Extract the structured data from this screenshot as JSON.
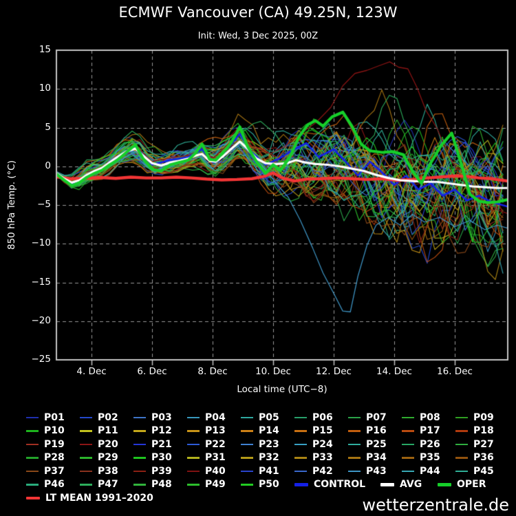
{
  "header": {
    "title": "ECMWF Vancouver (CA) 49.25N, 123W",
    "subtitle": "Init: Wed, 3 Dec 2025, 00Z"
  },
  "footer": {
    "watermark": "wetterzentrale.de"
  },
  "chart_data": {
    "type": "line",
    "title": "ECMWF Vancouver (CA) 49.25N, 123W",
    "subtitle": "Init: Wed, 3 Dec 2025, 00Z",
    "xlabel": "Local time (UTC−8)",
    "ylabel": "850 hPa Temp. (°C)",
    "x_domain": [
      2.84,
      17.75
    ],
    "x_unit": "day of December 2025",
    "ylim": [
      -25,
      15
    ],
    "grid": "dashed",
    "grid_color": "#9a9a9a",
    "frame_color": "#c4c4c4",
    "background": "#000000",
    "yticks": {
      "values": [
        15,
        10,
        5,
        0,
        -5,
        -10,
        -15,
        -20,
        -25
      ],
      "labels": [
        "15",
        "10",
        "5",
        "0",
        "−5",
        "−10",
        "−15",
        "−20",
        "−25"
      ]
    },
    "xticks": {
      "values": [
        4,
        6,
        8,
        10,
        12,
        14,
        16
      ],
      "labels": [
        "4. Dec",
        "6. Dec",
        "8. Dec",
        "10. Dec",
        "12. Dec",
        "14. Dec",
        "16. Dec"
      ]
    },
    "series": {
      "avg": {
        "name": "AVG",
        "color": "#ffffff",
        "width": 3.2,
        "points": [
          [
            2.84,
            -0.9
          ],
          [
            3.1,
            -1.6
          ],
          [
            3.35,
            -2.1
          ],
          [
            3.6,
            -1.8
          ],
          [
            3.85,
            -1.1
          ],
          [
            4.1,
            -0.6
          ],
          [
            4.35,
            -0.2
          ],
          [
            4.6,
            0.5
          ],
          [
            4.85,
            1.2
          ],
          [
            5.15,
            1.9
          ],
          [
            5.45,
            2.3
          ],
          [
            5.7,
            1.4
          ],
          [
            6.0,
            0.4
          ],
          [
            6.3,
            0.1
          ],
          [
            6.6,
            0.5
          ],
          [
            6.9,
            0.7
          ],
          [
            7.2,
            1.0
          ],
          [
            7.45,
            1.4
          ],
          [
            7.65,
            1.6
          ],
          [
            7.9,
            0.7
          ],
          [
            8.1,
            0.6
          ],
          [
            8.35,
            1.3
          ],
          [
            8.6,
            2.2
          ],
          [
            8.9,
            3.2
          ],
          [
            9.15,
            2.3
          ],
          [
            9.45,
            1.0
          ],
          [
            9.75,
            0.4
          ],
          [
            10.1,
            0.3
          ],
          [
            10.45,
            0.4
          ],
          [
            10.75,
            0.8
          ],
          [
            11.05,
            0.5
          ],
          [
            11.4,
            0.3
          ],
          [
            11.8,
            0.2
          ],
          [
            12.2,
            0.0
          ],
          [
            12.6,
            -0.3
          ],
          [
            13.0,
            -0.6
          ],
          [
            13.4,
            -1.1
          ],
          [
            13.8,
            -1.5
          ],
          [
            14.2,
            -1.8
          ],
          [
            14.6,
            -1.9
          ],
          [
            15.0,
            -2.0
          ],
          [
            15.4,
            -2.0
          ],
          [
            15.8,
            -2.2
          ],
          [
            16.2,
            -2.4
          ],
          [
            16.6,
            -2.6
          ],
          [
            17.0,
            -2.7
          ],
          [
            17.4,
            -2.8
          ],
          [
            17.75,
            -2.8
          ]
        ]
      },
      "oper": {
        "name": "OPER",
        "color": "#16ce2a",
        "width": 4.2,
        "points": [
          [
            2.84,
            -1.0
          ],
          [
            3.1,
            -1.8
          ],
          [
            3.35,
            -2.5
          ],
          [
            3.6,
            -2.1
          ],
          [
            3.85,
            -1.4
          ],
          [
            4.1,
            -0.9
          ],
          [
            4.35,
            -0.5
          ],
          [
            4.6,
            0.2
          ],
          [
            4.85,
            0.8
          ],
          [
            5.15,
            1.8
          ],
          [
            5.45,
            2.8
          ],
          [
            5.7,
            1.0
          ],
          [
            6.0,
            -0.4
          ],
          [
            6.3,
            -0.6
          ],
          [
            6.6,
            0.2
          ],
          [
            6.9,
            0.5
          ],
          [
            7.2,
            0.8
          ],
          [
            7.45,
            1.8
          ],
          [
            7.65,
            2.9
          ],
          [
            7.9,
            0.9
          ],
          [
            8.1,
            0.8
          ],
          [
            8.35,
            1.8
          ],
          [
            8.6,
            3.0
          ],
          [
            8.9,
            5.1
          ],
          [
            9.15,
            2.6
          ],
          [
            9.45,
            0.6
          ],
          [
            9.75,
            -0.9
          ],
          [
            10.0,
            0.2
          ],
          [
            10.25,
            -0.5
          ],
          [
            10.55,
            1.2
          ],
          [
            10.85,
            3.8
          ],
          [
            11.15,
            5.4
          ],
          [
            11.4,
            5.9
          ],
          [
            11.65,
            5.2
          ],
          [
            11.95,
            6.4
          ],
          [
            12.3,
            7.0
          ],
          [
            12.6,
            5.2
          ],
          [
            12.9,
            2.9
          ],
          [
            13.2,
            2.0
          ],
          [
            13.6,
            1.8
          ],
          [
            13.95,
            1.9
          ],
          [
            14.3,
            1.5
          ],
          [
            14.6,
            -0.6
          ],
          [
            14.9,
            -2.2
          ],
          [
            15.2,
            0.4
          ],
          [
            15.55,
            2.7
          ],
          [
            15.9,
            4.3
          ],
          [
            16.2,
            0.5
          ],
          [
            16.5,
            -3.6
          ],
          [
            16.8,
            -4.5
          ],
          [
            17.1,
            -4.7
          ],
          [
            17.4,
            -4.6
          ],
          [
            17.75,
            -4.3
          ]
        ]
      },
      "control": {
        "name": "CONTROL",
        "color": "#1420e6",
        "width": 2.6,
        "points": [
          [
            2.84,
            -0.9
          ],
          [
            3.35,
            -2.3
          ],
          [
            3.85,
            -1.2
          ],
          [
            4.35,
            -0.4
          ],
          [
            4.85,
            1.0
          ],
          [
            5.45,
            2.6
          ],
          [
            6.0,
            0.2
          ],
          [
            6.6,
            0.8
          ],
          [
            7.2,
            1.2
          ],
          [
            7.65,
            2.2
          ],
          [
            8.0,
            0.5
          ],
          [
            8.6,
            2.8
          ],
          [
            8.9,
            4.2
          ],
          [
            9.3,
            1.8
          ],
          [
            9.75,
            0.2
          ],
          [
            10.2,
            1.0
          ],
          [
            10.7,
            2.2
          ],
          [
            11.1,
            3.0
          ],
          [
            11.5,
            1.2
          ],
          [
            12.0,
            2.2
          ],
          [
            12.4,
            0.6
          ],
          [
            12.8,
            -1.2
          ],
          [
            13.2,
            0.6
          ],
          [
            13.6,
            -0.8
          ],
          [
            14.0,
            -2.4
          ],
          [
            14.4,
            -1.2
          ],
          [
            14.8,
            -3.0
          ],
          [
            15.2,
            -2.2
          ],
          [
            15.6,
            -3.8
          ],
          [
            16.0,
            -3.0
          ],
          [
            16.4,
            -4.4
          ],
          [
            16.8,
            -3.8
          ],
          [
            17.2,
            -4.6
          ],
          [
            17.75,
            -5.2
          ]
        ]
      },
      "lt_mean": {
        "name": "LT MEAN 1991–2020",
        "color": "#f23535",
        "width": 4.4,
        "points": [
          [
            2.84,
            -1.35
          ],
          [
            3.3,
            -1.6
          ],
          [
            3.8,
            -1.55
          ],
          [
            4.3,
            -1.45
          ],
          [
            4.8,
            -1.55
          ],
          [
            5.3,
            -1.4
          ],
          [
            5.8,
            -1.5
          ],
          [
            6.3,
            -1.5
          ],
          [
            6.8,
            -1.4
          ],
          [
            7.3,
            -1.5
          ],
          [
            7.8,
            -1.65
          ],
          [
            8.3,
            -1.75
          ],
          [
            8.8,
            -1.7
          ],
          [
            9.3,
            -1.6
          ],
          [
            9.7,
            -1.3
          ],
          [
            10.0,
            -0.85
          ],
          [
            10.3,
            -1.5
          ],
          [
            10.7,
            -1.9
          ],
          [
            11.1,
            -1.65
          ],
          [
            11.6,
            -1.6
          ],
          [
            12.1,
            -1.5
          ],
          [
            12.6,
            -1.6
          ],
          [
            13.1,
            -1.7
          ],
          [
            13.6,
            -1.6
          ],
          [
            14.1,
            -1.8
          ],
          [
            14.6,
            -1.7
          ],
          [
            15.1,
            -1.5
          ],
          [
            15.6,
            -1.35
          ],
          [
            16.0,
            -1.25
          ],
          [
            16.4,
            -1.3
          ],
          [
            16.8,
            -1.5
          ],
          [
            17.2,
            -1.6
          ],
          [
            17.75,
            -1.9
          ]
        ]
      }
    },
    "outliers": [
      {
        "member": "P43",
        "color": "#3e96c6",
        "points": [
          [
            2.84,
            -1.1
          ],
          [
            3.35,
            -2.6
          ],
          [
            3.85,
            -1.5
          ],
          [
            4.35,
            -0.6
          ],
          [
            4.85,
            0.6
          ],
          [
            5.45,
            1.9
          ],
          [
            6.0,
            -0.6
          ],
          [
            6.6,
            0.0
          ],
          [
            7.2,
            0.7
          ],
          [
            7.65,
            1.3
          ],
          [
            8.0,
            -0.3
          ],
          [
            8.6,
            1.8
          ],
          [
            8.9,
            2.8
          ],
          [
            9.3,
            1.6
          ],
          [
            9.7,
            -0.2
          ],
          [
            10.1,
            -2.2
          ],
          [
            10.5,
            -4.0
          ],
          [
            10.9,
            -7.0
          ],
          [
            11.3,
            -10.5
          ],
          [
            11.65,
            -13.8
          ],
          [
            12.0,
            -16.4
          ],
          [
            12.3,
            -18.7
          ],
          [
            12.55,
            -18.8
          ],
          [
            12.8,
            -14.2
          ],
          [
            13.1,
            -10.2
          ],
          [
            13.4,
            -7.6
          ],
          [
            13.8,
            -6.6
          ],
          [
            14.2,
            -7.6
          ],
          [
            14.6,
            -6.2
          ],
          [
            15.0,
            -7.2
          ],
          [
            15.5,
            -6.6
          ],
          [
            16.0,
            -7.8
          ],
          [
            16.5,
            -7.0
          ],
          [
            17.0,
            -8.2
          ],
          [
            17.4,
            -7.6
          ],
          [
            17.75,
            -8.0
          ]
        ]
      },
      {
        "member": "P40",
        "color": "#8e1414",
        "points": [
          [
            2.84,
            -0.8
          ],
          [
            3.35,
            -2.2
          ],
          [
            3.85,
            -1.2
          ],
          [
            4.35,
            -0.3
          ],
          [
            4.85,
            1.2
          ],
          [
            5.45,
            2.7
          ],
          [
            6.0,
            0.6
          ],
          [
            6.6,
            1.1
          ],
          [
            7.2,
            1.4
          ],
          [
            7.65,
            2.3
          ],
          [
            8.0,
            1.0
          ],
          [
            8.6,
            3.2
          ],
          [
            8.9,
            4.6
          ],
          [
            9.4,
            2.6
          ],
          [
            9.9,
            1.6
          ],
          [
            10.4,
            2.6
          ],
          [
            10.9,
            4.2
          ],
          [
            11.4,
            5.6
          ],
          [
            11.9,
            7.6
          ],
          [
            12.3,
            10.4
          ],
          [
            12.7,
            12.0
          ],
          [
            13.1,
            12.4
          ],
          [
            13.5,
            13.0
          ],
          [
            13.85,
            13.5
          ],
          [
            14.15,
            12.8
          ],
          [
            14.45,
            12.6
          ],
          [
            14.75,
            10.2
          ],
          [
            15.05,
            7.2
          ],
          [
            15.4,
            5.0
          ],
          [
            15.8,
            1.4
          ],
          [
            16.25,
            -1.7
          ],
          [
            16.6,
            -3.6
          ],
          [
            17.0,
            -4.6
          ],
          [
            17.4,
            -5.6
          ],
          [
            17.75,
            -6.1
          ]
        ]
      }
    ],
    "ensemble": {
      "count": 50,
      "seed": 20251203,
      "step_days": 0.25,
      "labels": [
        "P01",
        "P02",
        "P03",
        "P04",
        "P05",
        "P06",
        "P07",
        "P08",
        "P09",
        "P10",
        "P11",
        "P12",
        "P13",
        "P14",
        "P15",
        "P16",
        "P17",
        "P18",
        "P19",
        "P20",
        "P21",
        "P22",
        "P23",
        "P24",
        "P25",
        "P26",
        "P27",
        "P28",
        "P29",
        "P30",
        "P31",
        "P32",
        "P33",
        "P34",
        "P35",
        "P36",
        "P37",
        "P38",
        "P39",
        "P40",
        "P41",
        "P42",
        "P43",
        "P44",
        "P45",
        "P46",
        "P47",
        "P48",
        "P49",
        "P50"
      ],
      "colors": [
        "#1f2fae",
        "#2448cc",
        "#3f74c8",
        "#3898be",
        "#2ea8a0",
        "#27a06b",
        "#2aa348",
        "#2fac2f",
        "#2f9f22",
        "#1db41d",
        "#c2c21e",
        "#c4a81a",
        "#c89418",
        "#cc8016",
        "#c87012",
        "#c25e0e",
        "#ba4b10",
        "#b03a0e",
        "#a12f22",
        "#8c1616",
        "#2436d8",
        "#2d5bd8",
        "#3f82d2",
        "#38a0c4",
        "#2fae9f",
        "#28a865",
        "#2fae3f",
        "#23a32a",
        "#2bb42b",
        "#1fc41f",
        "#b2b21d",
        "#b49a18",
        "#aa8414",
        "#a67412",
        "#9c6210",
        "#92520e",
        "#8a4818",
        "#8a321e",
        "#8c2014",
        "#801212",
        "#2a44cc",
        "#3a68cc",
        "#3e96c6",
        "#38a8b4",
        "#2fae96",
        "#2aac7c",
        "#2dae5c",
        "#31b43c",
        "#2cbe2c",
        "#22cc22"
      ],
      "spread_profile": [
        [
          2.84,
          0.8
        ],
        [
          3.5,
          1.5
        ],
        [
          4.5,
          1.5
        ],
        [
          5.45,
          1.9
        ],
        [
          6.5,
          1.7
        ],
        [
          7.6,
          2.0
        ],
        [
          8.9,
          2.5
        ],
        [
          9.5,
          3.0
        ],
        [
          10.5,
          4.3
        ],
        [
          11.5,
          5.2
        ],
        [
          12.5,
          5.8
        ],
        [
          13.5,
          6.3
        ],
        [
          14.5,
          6.8
        ],
        [
          15.5,
          7.2
        ],
        [
          16.5,
          7.6
        ],
        [
          17.75,
          8.0
        ]
      ]
    },
    "legend_special": [
      {
        "label": "CONTROL",
        "color": "#1420e6"
      },
      {
        "label": "AVG",
        "color": "#ffffff"
      },
      {
        "label": "OPER",
        "color": "#16ce2a"
      },
      {
        "label": "LT MEAN 1991–2020",
        "color": "#f23535"
      }
    ]
  }
}
